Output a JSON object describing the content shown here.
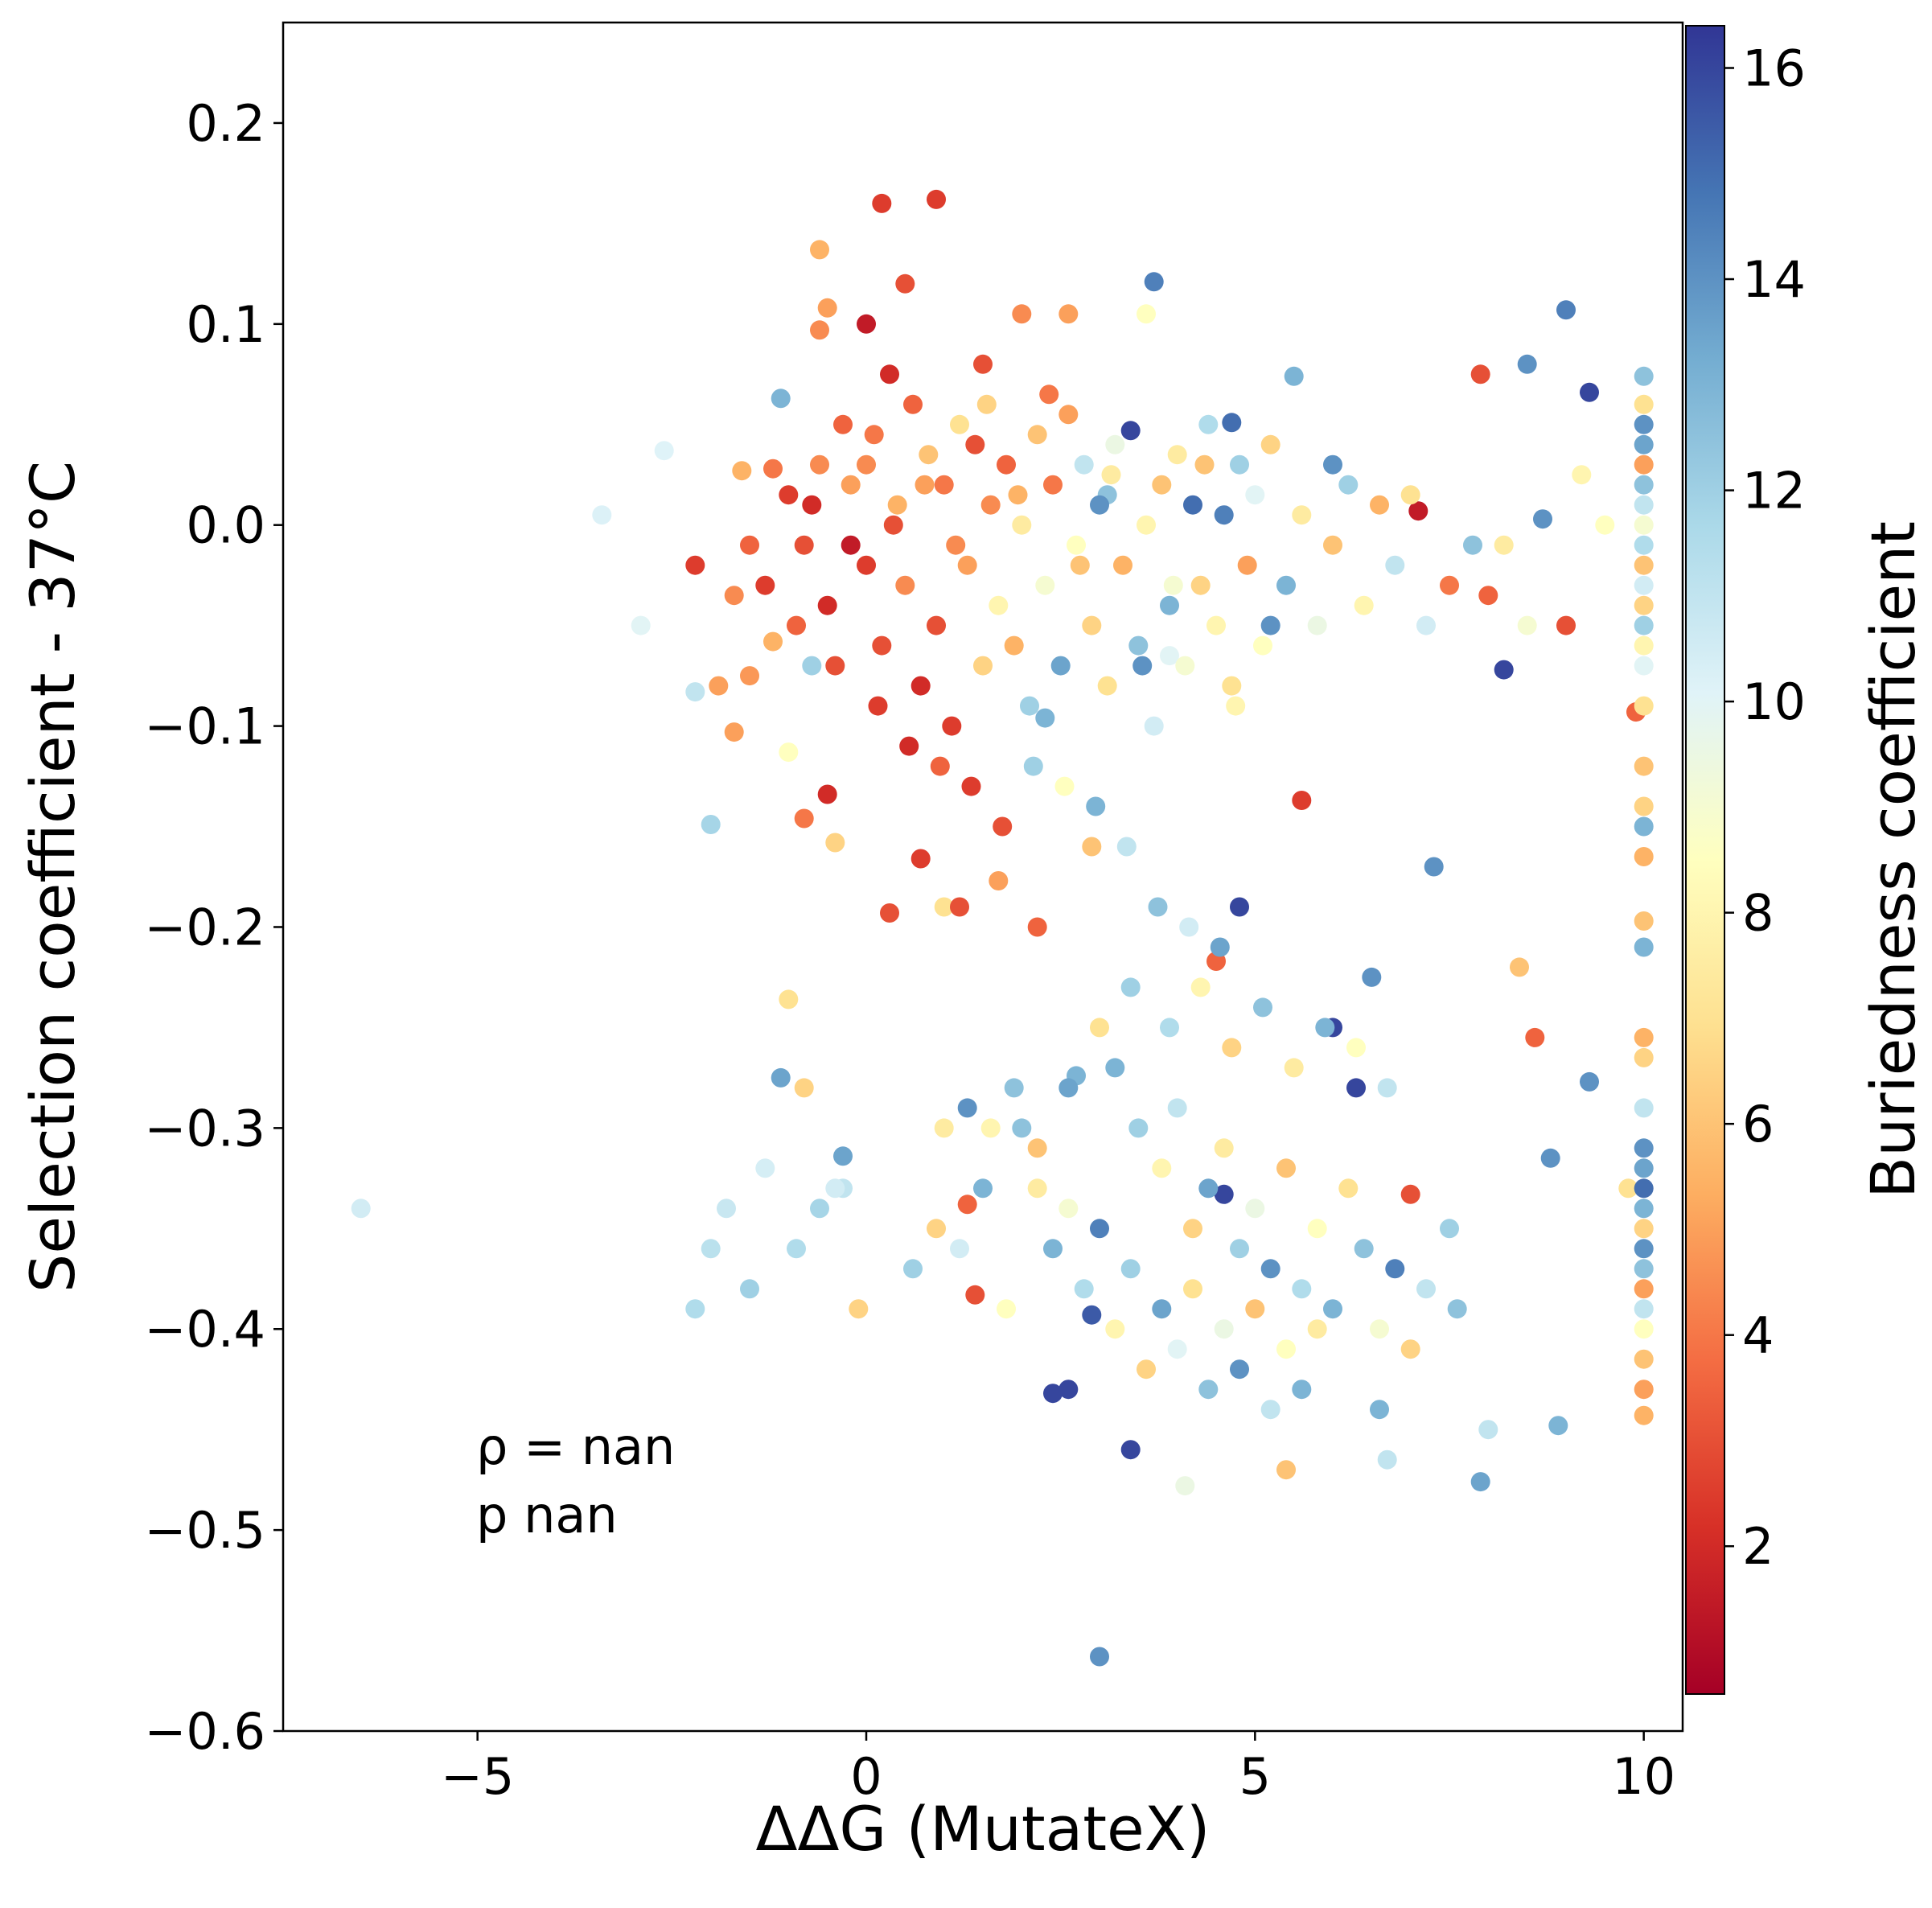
{
  "chart_data": {
    "type": "scatter",
    "xlabel": "ΔΔG (MutateX)",
    "ylabel": "Selection coefficient - 37°C",
    "xlim": [
      -7.5,
      10.5
    ],
    "ylim": [
      -0.6,
      0.25
    ],
    "x_ticks": [
      -5,
      0,
      5,
      10
    ],
    "x_tick_labels": [
      "−5",
      "0",
      "5",
      "10"
    ],
    "y_ticks": [
      0.2,
      0.1,
      0.0,
      -0.1,
      -0.2,
      -0.3,
      -0.4,
      -0.5,
      -0.6
    ],
    "y_tick_labels": [
      "0.2",
      "0.1",
      "0.0",
      "−0.1",
      "−0.2",
      "−0.3",
      "−0.4",
      "−0.5",
      "−0.6"
    ],
    "grid": false,
    "annotations": [
      "ρ = nan",
      "p nan"
    ],
    "colorbar": {
      "label": "Buriedness coefficient",
      "colormap": "RdYlBu",
      "range": [
        0.6,
        16.4
      ],
      "ticks": [
        2,
        4,
        6,
        8,
        10,
        12,
        14,
        16
      ],
      "tick_labels": [
        "2",
        "4",
        "6",
        "8",
        "10",
        "12",
        "14",
        "16"
      ],
      "colors": [
        "#a50026",
        "#d73027",
        "#f46d43",
        "#fdae61",
        "#fee090",
        "#ffffbf",
        "#e0f3f8",
        "#abd9e9",
        "#74add1",
        "#4575b4",
        "#313695"
      ]
    },
    "points": [
      [
        -6.5,
        -0.34,
        10.5
      ],
      [
        -3.4,
        0.005,
        10.2
      ],
      [
        -2.9,
        -0.05,
        10.0
      ],
      [
        -2.6,
        0.037,
        10.1
      ],
      [
        -2.2,
        -0.02,
        2.5
      ],
      [
        -2.2,
        -0.083,
        11.0
      ],
      [
        -2.2,
        -0.39,
        11.5
      ],
      [
        -2.0,
        -0.149,
        11.8
      ],
      [
        -1.9,
        -0.08,
        5.0
      ],
      [
        -1.7,
        -0.035,
        4.5
      ],
      [
        -1.7,
        -0.103,
        5.0
      ],
      [
        -1.6,
        0.027,
        5.5
      ],
      [
        -1.5,
        -0.01,
        3.5
      ],
      [
        -1.5,
        -0.075,
        4.8
      ],
      [
        -1.2,
        -0.058,
        5.5
      ],
      [
        -1.1,
        0.063,
        13.0
      ],
      [
        -1.0,
        -0.113,
        8.5
      ],
      [
        -1.0,
        -0.236,
        7.0
      ],
      [
        -1.1,
        -0.275,
        13.5
      ],
      [
        -0.8,
        -0.28,
        6.5
      ],
      [
        -0.8,
        -0.146,
        4.0
      ],
      [
        -0.7,
        -0.07,
        12.0
      ],
      [
        -0.6,
        0.137,
        5.5
      ],
      [
        -0.6,
        0.097,
        4.5
      ],
      [
        -0.5,
        0.108,
        5.0
      ],
      [
        -0.5,
        -0.134,
        2.0
      ],
      [
        -0.4,
        -0.158,
        6.5
      ],
      [
        -0.3,
        -0.314,
        13.5
      ],
      [
        -0.3,
        -0.33,
        11.0
      ],
      [
        -0.1,
        -0.39,
        6.5
      ],
      [
        0.0,
        0.1,
        1.5
      ],
      [
        0.2,
        0.16,
        2.5
      ],
      [
        0.3,
        -0.193,
        3.0
      ],
      [
        0.5,
        0.12,
        3.0
      ],
      [
        0.7,
        -0.166,
        2.5
      ],
      [
        0.9,
        0.162,
        2.5
      ],
      [
        1.0,
        -0.19,
        7.0
      ],
      [
        1.2,
        -0.19,
        3.0
      ],
      [
        1.3,
        -0.338,
        3.5
      ],
      [
        1.4,
        -0.383,
        3.0
      ],
      [
        1.5,
        0.08,
        3.0
      ],
      [
        1.7,
        -0.177,
        5.0
      ],
      [
        2.0,
        0.105,
        4.5
      ],
      [
        2.2,
        -0.2,
        3.5
      ],
      [
        2.3,
        -0.096,
        13.0
      ],
      [
        2.4,
        -0.432,
        16.0
      ],
      [
        2.6,
        0.105,
        5.0
      ],
      [
        2.6,
        -0.43,
        16.0
      ],
      [
        2.7,
        -0.274,
        13.0
      ],
      [
        2.9,
        -0.16,
        6.0
      ],
      [
        2.9,
        -0.393,
        15.5
      ],
      [
        3.0,
        -0.563,
        14.0
      ],
      [
        3.1,
        0.015,
        12.5
      ],
      [
        3.4,
        -0.46,
        16.0
      ],
      [
        3.6,
        0.105,
        8.5
      ],
      [
        3.7,
        0.121,
        14.5
      ],
      [
        3.9,
        -0.065,
        10.0
      ],
      [
        4.1,
        -0.478,
        9.5
      ],
      [
        4.5,
        -0.217,
        3.5
      ],
      [
        4.6,
        -0.333,
        16.0
      ],
      [
        4.7,
        0.051,
        15.0
      ],
      [
        4.8,
        -0.19,
        16.0
      ],
      [
        5.2,
        -0.05,
        14.0
      ],
      [
        5.4,
        -0.47,
        6.0
      ],
      [
        5.5,
        0.074,
        13.0
      ],
      [
        5.6,
        -0.137,
        2.5
      ],
      [
        6.0,
        0.03,
        14.0
      ],
      [
        6.0,
        -0.25,
        16.0
      ],
      [
        6.3,
        -0.28,
        16.0
      ],
      [
        6.5,
        -0.225,
        14.0
      ],
      [
        6.6,
        -0.44,
        13.0
      ],
      [
        6.7,
        -0.465,
        11.0
      ],
      [
        7.0,
        -0.333,
        3.0
      ],
      [
        7.1,
        0.007,
        1.5
      ],
      [
        7.3,
        -0.17,
        14.0
      ],
      [
        7.5,
        -0.35,
        12.0
      ],
      [
        7.6,
        -0.39,
        12.5
      ],
      [
        7.9,
        -0.476,
        13.5
      ],
      [
        7.9,
        0.075,
        3.0
      ],
      [
        8.0,
        -0.45,
        11.0
      ],
      [
        8.2,
        -0.072,
        16.0
      ],
      [
        8.4,
        -0.22,
        6.0
      ],
      [
        8.5,
        0.08,
        14.0
      ],
      [
        8.6,
        -0.255,
        3.5
      ],
      [
        8.7,
        0.003,
        14.0
      ],
      [
        8.8,
        -0.315,
        14.0
      ],
      [
        8.9,
        -0.448,
        13.0
      ],
      [
        9.0,
        0.107,
        14.5
      ],
      [
        9.0,
        -0.05,
        3.0
      ],
      [
        9.2,
        0.025,
        8.0
      ],
      [
        9.3,
        0.066,
        16.0
      ],
      [
        9.3,
        -0.277,
        14.0
      ],
      [
        9.5,
        0.0,
        8.5
      ],
      [
        9.8,
        -0.33,
        7.0
      ],
      [
        9.9,
        -0.093,
        3.5
      ],
      [
        10.0,
        0.074,
        12.5
      ],
      [
        10.0,
        0.06,
        7.0
      ],
      [
        10.0,
        0.05,
        14.0
      ],
      [
        10.0,
        0.04,
        13.5
      ],
      [
        10.0,
        0.03,
        5.0
      ],
      [
        10.0,
        0.02,
        12.5
      ],
      [
        10.0,
        0.01,
        11.0
      ],
      [
        10.0,
        0.0,
        9.0
      ],
      [
        10.0,
        -0.01,
        11.5
      ],
      [
        10.0,
        -0.02,
        6.0
      ],
      [
        10.0,
        -0.03,
        10.5
      ],
      [
        10.0,
        -0.04,
        6.5
      ],
      [
        10.0,
        -0.05,
        12.0
      ],
      [
        10.0,
        -0.06,
        8.0
      ],
      [
        10.0,
        -0.07,
        10.0
      ],
      [
        10.0,
        -0.09,
        7.0
      ],
      [
        10.0,
        -0.12,
        6.0
      ],
      [
        10.0,
        -0.14,
        6.5
      ],
      [
        10.0,
        -0.15,
        13.0
      ],
      [
        10.0,
        -0.165,
        5.5
      ],
      [
        10.0,
        -0.197,
        6.0
      ],
      [
        10.0,
        -0.21,
        13.0
      ],
      [
        10.0,
        -0.255,
        5.5
      ],
      [
        10.0,
        -0.265,
        6.5
      ],
      [
        10.0,
        -0.29,
        11.0
      ],
      [
        10.0,
        -0.31,
        14.0
      ],
      [
        10.0,
        -0.32,
        13.5
      ],
      [
        10.0,
        -0.33,
        15.0
      ],
      [
        10.0,
        -0.34,
        13.0
      ],
      [
        10.0,
        -0.35,
        6.5
      ],
      [
        10.0,
        -0.36,
        14.0
      ],
      [
        10.0,
        -0.37,
        12.5
      ],
      [
        10.0,
        -0.38,
        5.0
      ],
      [
        10.0,
        -0.39,
        11.0
      ],
      [
        10.0,
        -0.4,
        8.5
      ],
      [
        10.0,
        -0.415,
        6.0
      ],
      [
        10.0,
        -0.43,
        5.0
      ],
      [
        10.0,
        -0.443,
        5.5
      ],
      [
        -1.2,
        0.028,
        4.0
      ],
      [
        -1.0,
        0.015,
        2.5
      ],
      [
        -0.8,
        -0.01,
        3.0
      ],
      [
        -0.6,
        0.03,
        4.5
      ],
      [
        -0.5,
        -0.04,
        2.0
      ],
      [
        -0.3,
        0.05,
        3.5
      ],
      [
        -0.2,
        0.02,
        5.0
      ],
      [
        0.0,
        -0.02,
        2.5
      ],
      [
        0.1,
        0.045,
        4.0
      ],
      [
        0.2,
        -0.06,
        3.0
      ],
      [
        0.3,
        0.075,
        2.0
      ],
      [
        0.4,
        0.01,
        5.5
      ],
      [
        0.5,
        -0.03,
        4.5
      ],
      [
        0.6,
        0.06,
        3.5
      ],
      [
        0.7,
        -0.08,
        2.0
      ],
      [
        0.8,
        0.035,
        6.0
      ],
      [
        0.9,
        -0.05,
        3.0
      ],
      [
        1.0,
        0.02,
        4.0
      ],
      [
        1.1,
        -0.1,
        2.5
      ],
      [
        1.2,
        0.05,
        7.0
      ],
      [
        1.3,
        -0.02,
        5.0
      ],
      [
        1.4,
        0.04,
        3.0
      ],
      [
        1.5,
        -0.07,
        6.5
      ],
      [
        1.6,
        0.01,
        4.5
      ],
      [
        1.7,
        -0.04,
        8.0
      ],
      [
        1.8,
        0.03,
        3.5
      ],
      [
        1.9,
        -0.06,
        5.5
      ],
      [
        2.0,
        0.0,
        7.5
      ],
      [
        2.1,
        -0.09,
        12.0
      ],
      [
        2.2,
        0.045,
        6.0
      ],
      [
        2.3,
        -0.03,
        9.0
      ],
      [
        2.4,
        0.02,
        4.0
      ],
      [
        2.5,
        -0.07,
        13.5
      ],
      [
        2.6,
        0.055,
        5.0
      ],
      [
        2.7,
        -0.01,
        8.5
      ],
      [
        2.8,
        0.03,
        11.0
      ],
      [
        2.9,
        -0.05,
        6.5
      ],
      [
        3.0,
        0.01,
        14.0
      ],
      [
        3.1,
        -0.08,
        7.0
      ],
      [
        3.2,
        0.04,
        9.5
      ],
      [
        3.3,
        -0.02,
        5.5
      ],
      [
        3.4,
        0.047,
        16.0
      ],
      [
        3.5,
        -0.06,
        12.5
      ],
      [
        3.6,
        0.0,
        8.0
      ],
      [
        3.7,
        -0.1,
        10.5
      ],
      [
        3.8,
        0.02,
        6.0
      ],
      [
        3.9,
        -0.04,
        13.0
      ],
      [
        4.0,
        0.035,
        7.5
      ],
      [
        4.1,
        -0.07,
        9.0
      ],
      [
        4.2,
        0.01,
        15.0
      ],
      [
        4.3,
        -0.03,
        6.5
      ],
      [
        4.4,
        0.05,
        11.5
      ],
      [
        4.5,
        -0.05,
        8.0
      ],
      [
        4.6,
        0.005,
        14.5
      ],
      [
        4.7,
        -0.08,
        7.0
      ],
      [
        4.8,
        0.03,
        12.0
      ],
      [
        4.9,
        -0.02,
        5.0
      ],
      [
        5.0,
        0.015,
        10.0
      ],
      [
        5.1,
        -0.06,
        8.5
      ],
      [
        5.2,
        0.04,
        6.5
      ],
      [
        5.4,
        -0.03,
        13.0
      ],
      [
        5.6,
        0.005,
        7.5
      ],
      [
        5.8,
        -0.05,
        9.5
      ],
      [
        6.0,
        -0.01,
        6.0
      ],
      [
        6.2,
        0.02,
        12.0
      ],
      [
        6.4,
        -0.04,
        8.0
      ],
      [
        6.6,
        0.01,
        5.5
      ],
      [
        6.8,
        -0.02,
        11.0
      ],
      [
        7.0,
        0.015,
        7.0
      ],
      [
        7.2,
        -0.05,
        10.5
      ],
      [
        7.5,
        -0.03,
        4.0
      ],
      [
        7.8,
        -0.01,
        12.5
      ],
      [
        8.0,
        -0.035,
        3.5
      ],
      [
        8.2,
        -0.01,
        7.5
      ],
      [
        8.5,
        -0.05,
        9.0
      ],
      [
        -1.3,
        -0.03,
        2.5
      ],
      [
        -0.9,
        -0.05,
        3.5
      ],
      [
        -0.7,
        0.01,
        2.0
      ],
      [
        -0.4,
        -0.07,
        3.0
      ],
      [
        -0.2,
        -0.01,
        1.5
      ],
      [
        0.0,
        0.03,
        4.5
      ],
      [
        0.15,
        -0.09,
        2.5
      ],
      [
        0.35,
        0.0,
        3.0
      ],
      [
        0.55,
        -0.11,
        2.0
      ],
      [
        0.75,
        0.02,
        5.0
      ],
      [
        0.95,
        -0.12,
        3.5
      ],
      [
        1.15,
        -0.01,
        4.5
      ],
      [
        1.35,
        -0.13,
        2.5
      ],
      [
        1.55,
        0.06,
        6.5
      ],
      [
        1.75,
        -0.15,
        3.0
      ],
      [
        1.95,
        0.015,
        5.5
      ],
      [
        2.15,
        -0.12,
        12.0
      ],
      [
        2.35,
        0.065,
        4.0
      ],
      [
        2.55,
        -0.13,
        8.5
      ],
      [
        2.75,
        -0.02,
        6.0
      ],
      [
        2.95,
        -0.14,
        13.0
      ],
      [
        3.15,
        0.025,
        7.5
      ],
      [
        3.35,
        -0.16,
        11.0
      ],
      [
        3.55,
        -0.07,
        14.0
      ],
      [
        3.75,
        -0.19,
        12.5
      ],
      [
        3.95,
        -0.03,
        9.0
      ],
      [
        4.15,
        -0.2,
        10.5
      ],
      [
        4.35,
        0.03,
        6.0
      ],
      [
        4.55,
        -0.21,
        13.5
      ],
      [
        4.75,
        -0.09,
        8.0
      ],
      [
        3.2,
        -0.27,
        13.0
      ],
      [
        3.5,
        -0.3,
        12.0
      ],
      [
        3.8,
        -0.32,
        8.0
      ],
      [
        4.0,
        -0.29,
        11.0
      ],
      [
        4.2,
        -0.35,
        6.5
      ],
      [
        4.4,
        -0.33,
        13.5
      ],
      [
        4.6,
        -0.31,
        7.5
      ],
      [
        4.8,
        -0.36,
        12.0
      ],
      [
        5.0,
        -0.34,
        9.5
      ],
      [
        5.2,
        -0.37,
        14.0
      ],
      [
        5.4,
        -0.32,
        6.0
      ],
      [
        5.6,
        -0.38,
        11.5
      ],
      [
        5.8,
        -0.35,
        8.5
      ],
      [
        6.0,
        -0.39,
        13.0
      ],
      [
        6.2,
        -0.33,
        7.0
      ],
      [
        6.4,
        -0.36,
        12.5
      ],
      [
        6.6,
        -0.4,
        9.0
      ],
      [
        6.8,
        -0.37,
        14.5
      ],
      [
        7.0,
        -0.41,
        6.5
      ],
      [
        7.2,
        -0.38,
        11.0
      ],
      [
        2.0,
        -0.3,
        12.5
      ],
      [
        2.2,
        -0.33,
        7.5
      ],
      [
        2.4,
        -0.36,
        13.0
      ],
      [
        2.6,
        -0.34,
        9.0
      ],
      [
        2.8,
        -0.38,
        11.5
      ],
      [
        3.0,
        -0.35,
        14.5
      ],
      [
        3.2,
        -0.4,
        8.0
      ],
      [
        3.4,
        -0.37,
        12.0
      ],
      [
        3.6,
        -0.42,
        6.5
      ],
      [
        3.8,
        -0.39,
        13.5
      ],
      [
        4.0,
        -0.41,
        10.0
      ],
      [
        4.2,
        -0.38,
        7.0
      ],
      [
        4.4,
        -0.43,
        12.5
      ],
      [
        4.6,
        -0.4,
        9.5
      ],
      [
        4.8,
        -0.42,
        14.0
      ],
      [
        5.0,
        -0.39,
        6.0
      ],
      [
        5.2,
        -0.44,
        11.0
      ],
      [
        5.4,
        -0.41,
        8.5
      ],
      [
        5.6,
        -0.43,
        13.0
      ],
      [
        5.8,
        -0.4,
        7.5
      ],
      [
        1.2,
        -0.36,
        10.5
      ],
      [
        1.5,
        -0.33,
        13.0
      ],
      [
        1.8,
        -0.39,
        8.5
      ],
      [
        0.6,
        -0.37,
        12.0
      ],
      [
        0.9,
        -0.35,
        6.5
      ],
      [
        -0.4,
        -0.33,
        10.5
      ],
      [
        -0.9,
        -0.36,
        11.5
      ],
      [
        -1.5,
        -0.38,
        12.0
      ],
      [
        -1.8,
        -0.34,
        10.8
      ],
      [
        -2.0,
        -0.36,
        11.2
      ],
      [
        -1.3,
        -0.32,
        10.4
      ],
      [
        -0.6,
        -0.34,
        11.8
      ],
      [
        3.9,
        -0.25,
        11.5
      ],
      [
        4.3,
        -0.23,
        8.0
      ],
      [
        4.7,
        -0.26,
        6.5
      ],
      [
        5.1,
        -0.24,
        12.5
      ],
      [
        5.5,
        -0.27,
        7.5
      ],
      [
        5.9,
        -0.25,
        13.0
      ],
      [
        6.3,
        -0.26,
        8.5
      ],
      [
        6.7,
        -0.28,
        11.0
      ],
      [
        3.4,
        -0.23,
        12.0
      ],
      [
        3.0,
        -0.25,
        7.0
      ],
      [
        2.6,
        -0.28,
        13.5
      ],
      [
        2.2,
        -0.31,
        6.0
      ],
      [
        1.9,
        -0.28,
        12.5
      ],
      [
        1.6,
        -0.3,
        8.0
      ],
      [
        1.3,
        -0.29,
        14.0
      ],
      [
        1.0,
        -0.3,
        7.5
      ]
    ]
  }
}
